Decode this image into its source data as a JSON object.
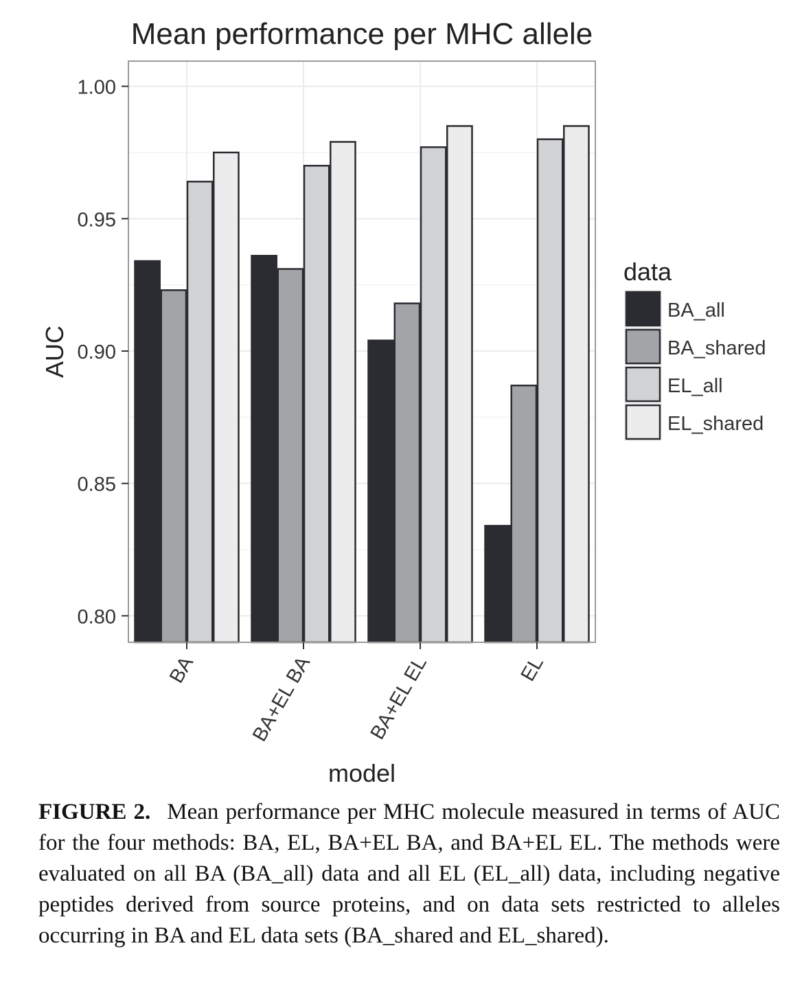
{
  "chart_data": {
    "type": "bar",
    "title": "Mean performance per MHC allele",
    "xlabel": "model",
    "ylabel": "AUC",
    "ylim": [
      0.79,
      1.0095
    ],
    "yticks": [
      "0.80",
      "0.85",
      "0.90",
      "0.95",
      "1.00"
    ],
    "ytick_values": [
      0.8,
      0.85,
      0.9,
      0.95,
      1.0
    ],
    "categories": [
      "BA",
      "BA+EL BA",
      "BA+EL EL",
      "EL"
    ],
    "grid": true,
    "legend": {
      "title": "data",
      "placement": "right"
    },
    "series": [
      {
        "name": "BA_all",
        "color": "#2a2c31",
        "values": [
          0.934,
          0.936,
          0.904,
          0.834
        ]
      },
      {
        "name": "BA_shared",
        "color": "#a3a4a8",
        "values": [
          0.923,
          0.931,
          0.918,
          0.887
        ]
      },
      {
        "name": "EL_all",
        "color": "#d1d2d4",
        "values": [
          0.964,
          0.97,
          0.977,
          0.98
        ]
      },
      {
        "name": "EL_shared",
        "color": "#ececec",
        "values": [
          0.975,
          0.979,
          0.985,
          0.985
        ]
      }
    ]
  },
  "caption": {
    "label": "FIGURE 2.",
    "text": "Mean performance per MHC molecule measured in terms of AUC for the four methods: BA, EL, BA+EL BA, and BA+EL EL. The methods were evaluated on all BA (BA_all) data and all EL (EL_all) data, including negative peptides derived from source proteins, and on data sets restricted to alleles occurring in BA and EL data sets (BA_shared and EL_shared)."
  }
}
